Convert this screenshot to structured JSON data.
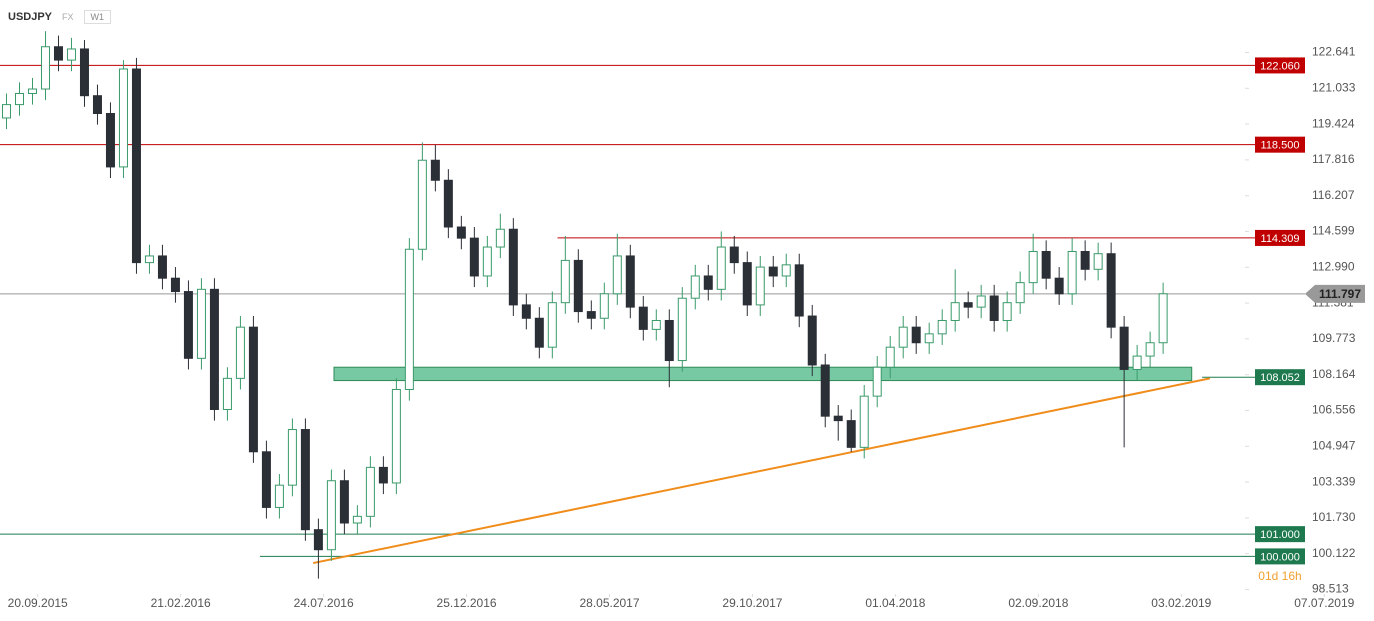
{
  "header": {
    "symbol": "USDJPY",
    "market": "FX",
    "timeframe": "W1"
  },
  "chart_data": {
    "type": "candlestick",
    "xlim": [
      -0.5,
      95.3
    ],
    "xticks": [
      {
        "value": 2.4,
        "label": "20.09.2015"
      },
      {
        "value": 13.4,
        "label": "21.02.2016"
      },
      {
        "value": 24.4,
        "label": "24.07.2016"
      },
      {
        "value": 35.4,
        "label": "25.12.2016"
      },
      {
        "value": 46.4,
        "label": "28.05.2017"
      },
      {
        "value": 57.4,
        "label": "29.10.2017"
      },
      {
        "value": 68.4,
        "label": "01.04.2018"
      },
      {
        "value": 79.4,
        "label": "02.09.2018"
      },
      {
        "value": 90.4,
        "label": "03.02.2019"
      },
      {
        "value": 101.4,
        "label": "07.07.2019"
      }
    ],
    "ylim": [
      98.4,
      125.0
    ],
    "yticks": [
      122.641,
      121.033,
      119.424,
      117.816,
      116.207,
      114.599,
      {
        "value": 112.99,
        "label": "112.990"
      },
      111.381,
      109.773,
      108.164,
      106.556,
      104.947,
      103.339,
      {
        "value": 101.73,
        "label": "101.730"
      },
      100.122,
      98.513
    ],
    "candles": {
      "open": [
        119.7,
        120.3,
        120.8,
        121.0,
        122.9,
        122.3,
        122.8,
        120.7,
        119.9,
        117.5,
        121.9,
        113.2,
        113.5,
        112.5,
        111.9,
        108.9,
        112.0,
        106.6,
        108.0,
        110.3,
        104.7,
        102.2,
        103.2,
        105.7,
        101.2,
        100.3,
        103.4,
        101.5,
        101.8,
        104.0,
        103.3,
        107.5,
        113.8,
        117.8,
        116.9,
        114.8,
        114.3,
        112.6,
        113.9,
        114.7,
        111.3,
        110.7,
        109.4,
        111.4,
        113.3,
        111.0,
        110.7,
        111.8,
        113.5,
        111.2,
        110.2,
        110.6,
        108.8,
        111.6,
        112.6,
        112.0,
        113.9,
        113.2,
        111.3,
        113.0,
        112.6,
        113.1,
        110.8,
        108.6,
        106.3,
        106.1,
        104.9,
        107.2,
        108.5,
        109.4,
        110.3,
        109.6,
        110.0,
        110.6,
        111.4,
        111.2,
        111.7,
        110.6,
        111.4,
        112.3,
        113.7,
        112.5,
        111.8,
        113.7,
        112.9,
        113.6,
        110.3,
        108.4,
        109.0,
        109.6
      ],
      "high": [
        120.8,
        121.3,
        121.5,
        123.6,
        123.4,
        123.3,
        123.2,
        121.2,
        120.4,
        122.3,
        122.4,
        114.0,
        114.0,
        113.0,
        112.4,
        112.5,
        112.5,
        108.5,
        110.8,
        110.8,
        105.2,
        103.7,
        106.2,
        106.2,
        101.7,
        103.9,
        103.9,
        102.3,
        104.5,
        104.5,
        108.0,
        114.3,
        118.6,
        118.5,
        117.4,
        115.3,
        114.8,
        114.4,
        115.4,
        115.2,
        111.8,
        111.2,
        111.9,
        114.4,
        113.8,
        111.5,
        112.3,
        114.5,
        114.0,
        111.7,
        111.1,
        111.1,
        112.1,
        113.1,
        113.1,
        114.6,
        114.4,
        113.7,
        113.5,
        113.5,
        113.6,
        113.6,
        111.3,
        109.1,
        106.8,
        106.6,
        107.7,
        109.0,
        109.9,
        110.8,
        110.8,
        110.5,
        111.1,
        112.9,
        111.9,
        112.2,
        112.2,
        111.9,
        112.8,
        114.5,
        114.2,
        113.0,
        114.3,
        114.2,
        114.1,
        114.1,
        110.8,
        109.5,
        110.1,
        112.3
      ],
      "low": [
        119.2,
        119.8,
        120.3,
        120.5,
        121.8,
        121.8,
        120.2,
        119.4,
        117.0,
        117.0,
        112.7,
        112.7,
        112.0,
        111.4,
        108.4,
        108.4,
        106.1,
        106.1,
        107.5,
        104.2,
        101.7,
        101.7,
        102.7,
        100.7,
        99.0,
        99.8,
        101.0,
        101.0,
        101.3,
        102.8,
        102.8,
        107.0,
        113.3,
        116.4,
        114.3,
        113.8,
        112.1,
        112.1,
        113.4,
        110.8,
        110.2,
        108.9,
        108.9,
        110.9,
        110.5,
        110.2,
        110.2,
        111.3,
        110.7,
        109.7,
        109.7,
        107.6,
        108.3,
        111.1,
        111.5,
        111.5,
        112.7,
        110.8,
        110.8,
        112.1,
        112.1,
        110.3,
        108.1,
        105.8,
        105.2,
        104.7,
        104.4,
        106.7,
        108.0,
        108.9,
        109.1,
        109.1,
        109.5,
        110.1,
        110.7,
        110.7,
        110.1,
        110.1,
        110.9,
        111.8,
        112.0,
        111.3,
        111.3,
        112.4,
        112.4,
        109.8,
        104.9,
        107.9,
        108.5,
        109.1
      ],
      "close": [
        120.3,
        120.8,
        121.0,
        122.9,
        122.3,
        122.8,
        120.7,
        119.9,
        117.5,
        121.9,
        113.2,
        113.5,
        112.5,
        111.9,
        108.9,
        112.0,
        106.6,
        108.0,
        110.3,
        104.7,
        102.2,
        103.2,
        105.7,
        101.2,
        100.3,
        103.4,
        101.5,
        101.8,
        104.0,
        103.3,
        107.5,
        113.8,
        117.8,
        116.9,
        114.8,
        114.3,
        112.6,
        113.9,
        114.7,
        111.3,
        110.7,
        109.4,
        111.4,
        113.3,
        111.0,
        110.7,
        111.8,
        113.5,
        111.2,
        110.2,
        110.6,
        108.8,
        111.6,
        112.6,
        112.0,
        113.9,
        113.2,
        111.3,
        113.0,
        112.6,
        113.1,
        110.8,
        108.6,
        106.3,
        106.1,
        104.9,
        107.2,
        108.5,
        109.4,
        110.3,
        109.6,
        110.0,
        110.6,
        111.4,
        111.2,
        111.7,
        110.6,
        111.4,
        112.3,
        113.7,
        112.5,
        111.8,
        113.7,
        112.9,
        113.6,
        110.3,
        108.4,
        109.0,
        109.6,
        111.8
      ],
      "up_color": "#3a9a6a",
      "down_color": "#2b2f36"
    },
    "levels": [
      {
        "value": 122.06,
        "label": "122.060",
        "color": "#c00000",
        "x_from": -0.5
      },
      {
        "value": 118.5,
        "label": "118.500",
        "color": "#c00000",
        "x_from": -0.5
      },
      {
        "value": 114.309,
        "label": "114.309",
        "color": "#c00000",
        "x_from": 42.4
      },
      {
        "value": 108.052,
        "label": "108.052",
        "color": "#1e7a4e",
        "x_from": 92.0
      },
      {
        "value": 101.0,
        "label": "101.000",
        "color": "#1e7a4e",
        "x_from": -0.5
      },
      {
        "value": 100.0,
        "label": "100.000",
        "color": "#1e7a4e",
        "x_from": 19.5
      }
    ],
    "zone": {
      "low": 107.9,
      "high": 108.5,
      "x": [
        25.2,
        91.2
      ],
      "color": "#5fbf94"
    },
    "trendline": {
      "x": [
        23.6,
        92.6
      ],
      "values": [
        99.7,
        108.0
      ],
      "color": "#f08c1a"
    },
    "last_price": {
      "value": 111.797,
      "color": "#999999"
    },
    "countdown": "01d 16h"
  }
}
